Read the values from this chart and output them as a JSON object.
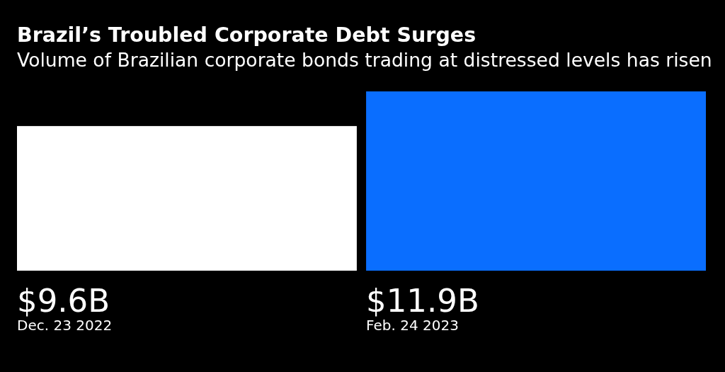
{
  "chart_data": {
    "type": "bar",
    "title": "Brazil’s Troubled Corporate Debt Surges",
    "subtitle": "Volume of Brazilian corporate bonds trading at distressed levels has risen",
    "categories": [
      "Dec. 23 2022",
      "Feb. 24 2023"
    ],
    "values": [
      9.6,
      11.9
    ],
    "colors": [
      "#ffffff",
      "#0a6eff"
    ],
    "value_labels": [
      "$9.6B",
      "$11.9B"
    ]
  }
}
